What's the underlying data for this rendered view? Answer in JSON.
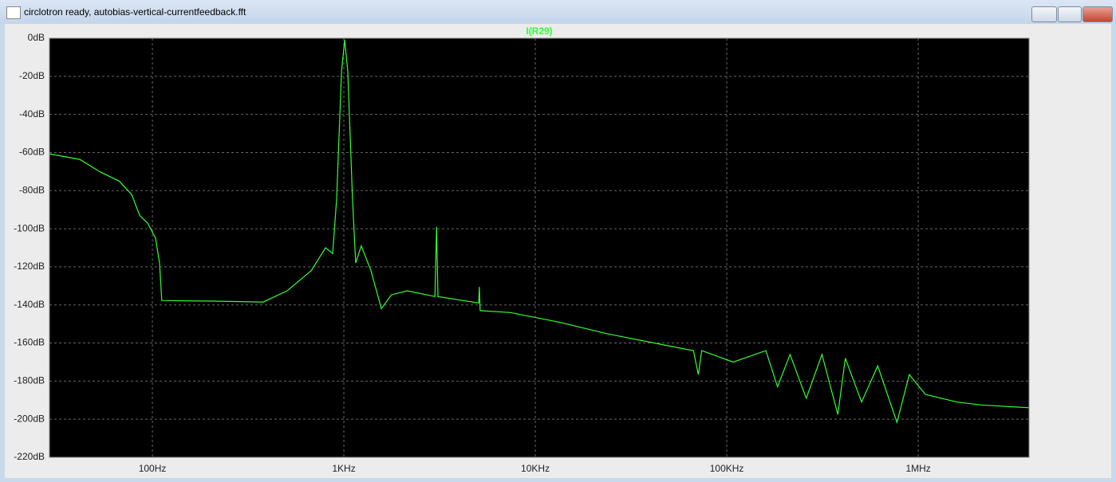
{
  "window": {
    "title": "circlotron ready, autobias-vertical-currentfeedback.fft"
  },
  "chart_data": {
    "type": "line",
    "title": "I(R29)",
    "x": [
      29,
      41.8,
      53,
      67,
      77.9,
      85.8,
      94.4,
      103.9,
      109,
      112,
      194,
      379,
      506,
      675,
      802,
      874,
      917,
      972,
      1010,
      1049,
      1110,
      1153,
      1233,
      1385,
      1570,
      1770,
      2140,
      2990,
      3050,
      3100,
      5060,
      5100,
      5150,
      7400,
      13200,
      23400,
      41700,
      67000,
      71000,
      74000,
      108000,
      160000,
      184000,
      214000,
      260000,
      314000,
      380000,
      416000,
      506000,
      614000,
      774000,
      898000,
      1090000,
      1600000,
      2130000,
      3790000
    ],
    "series": [
      {
        "name": "I(R29)",
        "color": "#33ff33",
        "values": [
          -60.7,
          -63.6,
          -70,
          -75,
          -82,
          -93,
          -97,
          -105,
          -118,
          -137.7,
          -138,
          -138.5,
          -132.6,
          -122,
          -110,
          -113,
          -84.5,
          -17.6,
          -0.8,
          -17.6,
          -84.5,
          -118,
          -109,
          -122,
          -142,
          -134.7,
          -132.6,
          -135.6,
          -99,
          -135.6,
          -139,
          -130.5,
          -143,
          -144,
          -149,
          -155,
          -160,
          -164,
          -176.6,
          -164,
          -170,
          -164,
          -183,
          -166,
          -189,
          -166,
          -197.5,
          -168,
          -191,
          -172,
          -201.7,
          -176.6,
          -187,
          -191,
          -192.5,
          -194
        ]
      }
    ],
    "xscale": "log",
    "xlim": [
      29,
      3790000
    ],
    "ylim": [
      -220,
      0
    ],
    "grid": true,
    "xticks": [
      {
        "value": 100,
        "label": "100Hz"
      },
      {
        "value": 1000,
        "label": "1KHz"
      },
      {
        "value": 10000,
        "label": "10KHz"
      },
      {
        "value": 100000,
        "label": "100KHz"
      },
      {
        "value": 1000000,
        "label": "1MHz"
      }
    ],
    "yticks": [
      {
        "value": 0,
        "label": "0dB"
      },
      {
        "value": -20,
        "label": "-20dB"
      },
      {
        "value": -40,
        "label": "-40dB"
      },
      {
        "value": -60,
        "label": "-60dB"
      },
      {
        "value": -80,
        "label": "-80dB"
      },
      {
        "value": -100,
        "label": "-100dB"
      },
      {
        "value": -120,
        "label": "-120dB"
      },
      {
        "value": -140,
        "label": "-140dB"
      },
      {
        "value": -160,
        "label": "-160dB"
      },
      {
        "value": -180,
        "label": "-180dB"
      },
      {
        "value": -200,
        "label": "-200dB"
      },
      {
        "value": -220,
        "label": "-220dB"
      }
    ]
  }
}
